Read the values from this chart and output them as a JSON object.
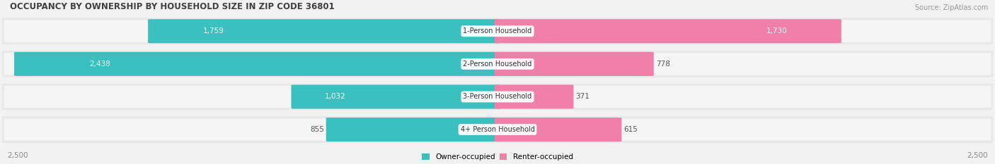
{
  "title": "OCCUPANCY BY OWNERSHIP BY HOUSEHOLD SIZE IN ZIP CODE 36801",
  "source": "Source: ZipAtlas.com",
  "categories": [
    "1-Person Household",
    "2-Person Household",
    "3-Person Household",
    "4+ Person Household"
  ],
  "owner_values": [
    1759,
    2438,
    1032,
    855
  ],
  "renter_values": [
    1730,
    778,
    371,
    615
  ],
  "owner_color": "#3BBFBF",
  "renter_color": "#F080A8",
  "owner_color_light": "#7DD8D8",
  "renter_color_light": "#F8B0CC",
  "axis_max": 2500,
  "bg_color": "#f2f2f2",
  "bar_bg_color": "#e0e0e0",
  "bar_bg_color2": "#f8f8f8",
  "value_inside_color": "white",
  "value_outside_color": "#555555",
  "title_color": "#404040",
  "source_color": "#999999",
  "legend_owner": "Owner-occupied",
  "legend_renter": "Renter-occupied",
  "figsize": [
    14.06,
    2.33
  ],
  "dpi": 100
}
